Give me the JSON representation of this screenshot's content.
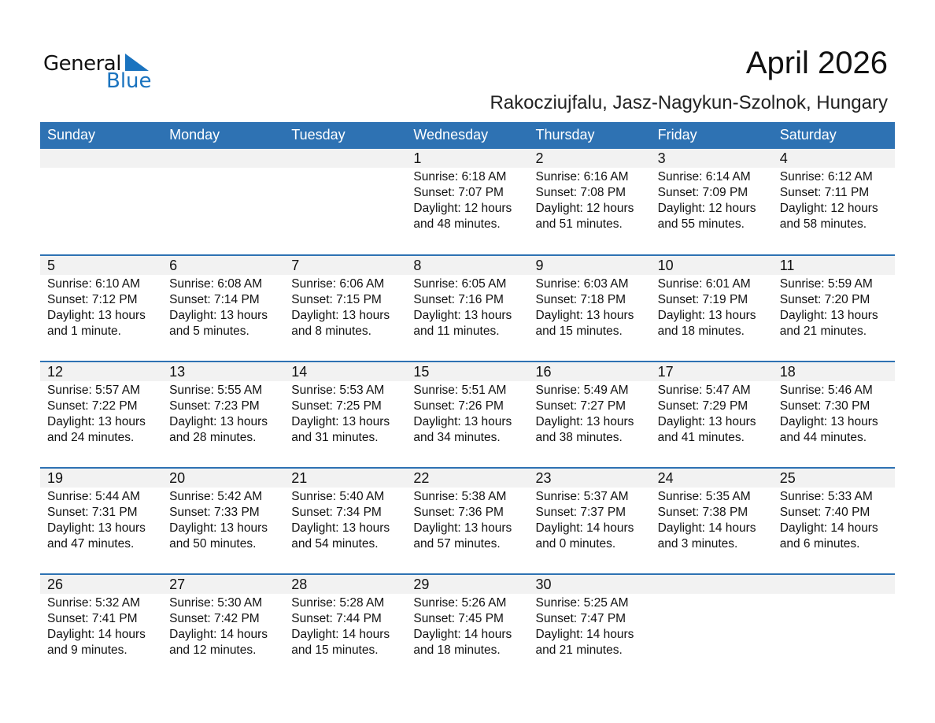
{
  "logo": {
    "text_general": "General",
    "text_blue": "Blue",
    "brand_color": "#1a73bf"
  },
  "title": "April 2026",
  "subtitle": "Rakocziujfalu, Jasz-Nagykun-Szolnok, Hungary",
  "header_color": "#2e72b3",
  "weekdays": [
    "Sunday",
    "Monday",
    "Tuesday",
    "Wednesday",
    "Thursday",
    "Friday",
    "Saturday"
  ],
  "weeks": [
    [
      null,
      null,
      null,
      {
        "day": "1",
        "sunrise": "Sunrise: 6:18 AM",
        "sunset": "Sunset: 7:07 PM",
        "daylight1": "Daylight: 12 hours",
        "daylight2": "and 48 minutes."
      },
      {
        "day": "2",
        "sunrise": "Sunrise: 6:16 AM",
        "sunset": "Sunset: 7:08 PM",
        "daylight1": "Daylight: 12 hours",
        "daylight2": "and 51 minutes."
      },
      {
        "day": "3",
        "sunrise": "Sunrise: 6:14 AM",
        "sunset": "Sunset: 7:09 PM",
        "daylight1": "Daylight: 12 hours",
        "daylight2": "and 55 minutes."
      },
      {
        "day": "4",
        "sunrise": "Sunrise: 6:12 AM",
        "sunset": "Sunset: 7:11 PM",
        "daylight1": "Daylight: 12 hours",
        "daylight2": "and 58 minutes."
      }
    ],
    [
      {
        "day": "5",
        "sunrise": "Sunrise: 6:10 AM",
        "sunset": "Sunset: 7:12 PM",
        "daylight1": "Daylight: 13 hours",
        "daylight2": "and 1 minute."
      },
      {
        "day": "6",
        "sunrise": "Sunrise: 6:08 AM",
        "sunset": "Sunset: 7:14 PM",
        "daylight1": "Daylight: 13 hours",
        "daylight2": "and 5 minutes."
      },
      {
        "day": "7",
        "sunrise": "Sunrise: 6:06 AM",
        "sunset": "Sunset: 7:15 PM",
        "daylight1": "Daylight: 13 hours",
        "daylight2": "and 8 minutes."
      },
      {
        "day": "8",
        "sunrise": "Sunrise: 6:05 AM",
        "sunset": "Sunset: 7:16 PM",
        "daylight1": "Daylight: 13 hours",
        "daylight2": "and 11 minutes."
      },
      {
        "day": "9",
        "sunrise": "Sunrise: 6:03 AM",
        "sunset": "Sunset: 7:18 PM",
        "daylight1": "Daylight: 13 hours",
        "daylight2": "and 15 minutes."
      },
      {
        "day": "10",
        "sunrise": "Sunrise: 6:01 AM",
        "sunset": "Sunset: 7:19 PM",
        "daylight1": "Daylight: 13 hours",
        "daylight2": "and 18 minutes."
      },
      {
        "day": "11",
        "sunrise": "Sunrise: 5:59 AM",
        "sunset": "Sunset: 7:20 PM",
        "daylight1": "Daylight: 13 hours",
        "daylight2": "and 21 minutes."
      }
    ],
    [
      {
        "day": "12",
        "sunrise": "Sunrise: 5:57 AM",
        "sunset": "Sunset: 7:22 PM",
        "daylight1": "Daylight: 13 hours",
        "daylight2": "and 24 minutes."
      },
      {
        "day": "13",
        "sunrise": "Sunrise: 5:55 AM",
        "sunset": "Sunset: 7:23 PM",
        "daylight1": "Daylight: 13 hours",
        "daylight2": "and 28 minutes."
      },
      {
        "day": "14",
        "sunrise": "Sunrise: 5:53 AM",
        "sunset": "Sunset: 7:25 PM",
        "daylight1": "Daylight: 13 hours",
        "daylight2": "and 31 minutes."
      },
      {
        "day": "15",
        "sunrise": "Sunrise: 5:51 AM",
        "sunset": "Sunset: 7:26 PM",
        "daylight1": "Daylight: 13 hours",
        "daylight2": "and 34 minutes."
      },
      {
        "day": "16",
        "sunrise": "Sunrise: 5:49 AM",
        "sunset": "Sunset: 7:27 PM",
        "daylight1": "Daylight: 13 hours",
        "daylight2": "and 38 minutes."
      },
      {
        "day": "17",
        "sunrise": "Sunrise: 5:47 AM",
        "sunset": "Sunset: 7:29 PM",
        "daylight1": "Daylight: 13 hours",
        "daylight2": "and 41 minutes."
      },
      {
        "day": "18",
        "sunrise": "Sunrise: 5:46 AM",
        "sunset": "Sunset: 7:30 PM",
        "daylight1": "Daylight: 13 hours",
        "daylight2": "and 44 minutes."
      }
    ],
    [
      {
        "day": "19",
        "sunrise": "Sunrise: 5:44 AM",
        "sunset": "Sunset: 7:31 PM",
        "daylight1": "Daylight: 13 hours",
        "daylight2": "and 47 minutes."
      },
      {
        "day": "20",
        "sunrise": "Sunrise: 5:42 AM",
        "sunset": "Sunset: 7:33 PM",
        "daylight1": "Daylight: 13 hours",
        "daylight2": "and 50 minutes."
      },
      {
        "day": "21",
        "sunrise": "Sunrise: 5:40 AM",
        "sunset": "Sunset: 7:34 PM",
        "daylight1": "Daylight: 13 hours",
        "daylight2": "and 54 minutes."
      },
      {
        "day": "22",
        "sunrise": "Sunrise: 5:38 AM",
        "sunset": "Sunset: 7:36 PM",
        "daylight1": "Daylight: 13 hours",
        "daylight2": "and 57 minutes."
      },
      {
        "day": "23",
        "sunrise": "Sunrise: 5:37 AM",
        "sunset": "Sunset: 7:37 PM",
        "daylight1": "Daylight: 14 hours",
        "daylight2": "and 0 minutes."
      },
      {
        "day": "24",
        "sunrise": "Sunrise: 5:35 AM",
        "sunset": "Sunset: 7:38 PM",
        "daylight1": "Daylight: 14 hours",
        "daylight2": "and 3 minutes."
      },
      {
        "day": "25",
        "sunrise": "Sunrise: 5:33 AM",
        "sunset": "Sunset: 7:40 PM",
        "daylight1": "Daylight: 14 hours",
        "daylight2": "and 6 minutes."
      }
    ],
    [
      {
        "day": "26",
        "sunrise": "Sunrise: 5:32 AM",
        "sunset": "Sunset: 7:41 PM",
        "daylight1": "Daylight: 14 hours",
        "daylight2": "and 9 minutes."
      },
      {
        "day": "27",
        "sunrise": "Sunrise: 5:30 AM",
        "sunset": "Sunset: 7:42 PM",
        "daylight1": "Daylight: 14 hours",
        "daylight2": "and 12 minutes."
      },
      {
        "day": "28",
        "sunrise": "Sunrise: 5:28 AM",
        "sunset": "Sunset: 7:44 PM",
        "daylight1": "Daylight: 14 hours",
        "daylight2": "and 15 minutes."
      },
      {
        "day": "29",
        "sunrise": "Sunrise: 5:26 AM",
        "sunset": "Sunset: 7:45 PM",
        "daylight1": "Daylight: 14 hours",
        "daylight2": "and 18 minutes."
      },
      {
        "day": "30",
        "sunrise": "Sunrise: 5:25 AM",
        "sunset": "Sunset: 7:47 PM",
        "daylight1": "Daylight: 14 hours",
        "daylight2": "and 21 minutes."
      },
      null,
      null
    ]
  ]
}
